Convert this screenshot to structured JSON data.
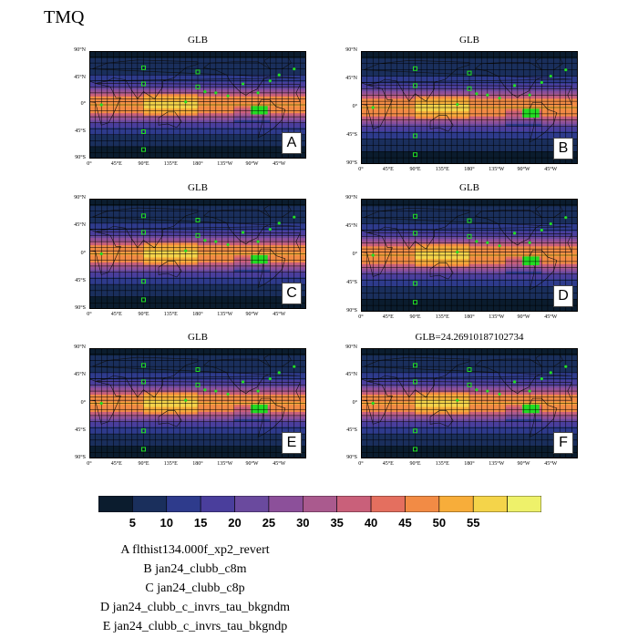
{
  "title": "TMQ",
  "colors": {
    "ocean_grid": "#000000",
    "green_marker": "#22dd22",
    "letter_box_bg": "#ffffff"
  },
  "chart_data": {
    "type": "heatmap",
    "variable": "TMQ",
    "colorbar": {
      "levels": [
        5,
        10,
        15,
        20,
        25,
        30,
        35,
        40,
        45,
        50,
        55
      ],
      "colors": [
        "#0b1c2e",
        "#1a2f5c",
        "#2e3b8c",
        "#4a3e9c",
        "#6a4a9e",
        "#8c509a",
        "#aa5a8e",
        "#c9607a",
        "#e46f5f",
        "#f28b45",
        "#f7ad3a",
        "#f4d44a",
        "#eef16a"
      ]
    },
    "yticks": [
      "90°N",
      "45°N",
      "0°",
      "45°S",
      "90°S"
    ],
    "xticks": [
      "0°",
      "45°E",
      "90°E",
      "135°E",
      "180°",
      "135°W",
      "90°W",
      "45°W"
    ],
    "panels": [
      {
        "letter": "A",
        "title": "GLB"
      },
      {
        "letter": "B",
        "title": "GLB"
      },
      {
        "letter": "C",
        "title": "GLB"
      },
      {
        "letter": "D",
        "title": "GLB"
      },
      {
        "letter": "E",
        "title": "GLB"
      },
      {
        "letter": "F",
        "title": "GLB=24.26910187102734"
      }
    ]
  },
  "cases": [
    {
      "letter": "A",
      "name": "flthist134.000f_xp2_revert"
    },
    {
      "letter": "B",
      "name": "jan24_clubb_c8m"
    },
    {
      "letter": "C",
      "name": "jan24_clubb_c8p"
    },
    {
      "letter": "D",
      "name": "jan24_clubb_c_invrs_tau_bkgndm"
    },
    {
      "letter": "E",
      "name": "jan24_clubb_c_invrs_tau_bkgndp"
    }
  ]
}
